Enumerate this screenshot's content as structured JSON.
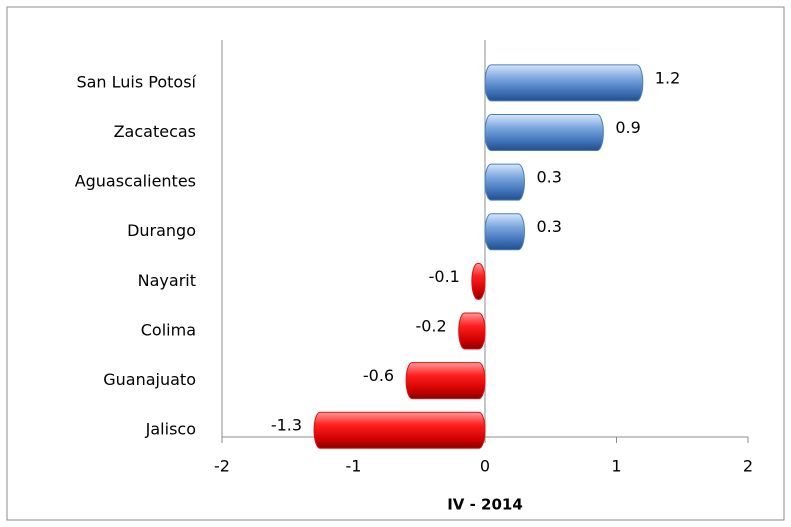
{
  "chart_data": {
    "type": "hbar",
    "x_label": "IV - 2014",
    "categories": [
      "San Luis Potosí",
      "Zacatecas",
      "Aguascalientes",
      "Durango",
      "Nayarit",
      "Colima",
      "Guanajuato",
      "Jalisco"
    ],
    "values": [
      1.2,
      0.9,
      0.3,
      0.3,
      -0.1,
      -0.2,
      -0.6,
      -1.3
    ],
    "positive_color": "#4a7ebb",
    "negative_color": "#e01010",
    "xlim": [
      -2,
      2
    ],
    "xticks": [
      -2,
      -1,
      0,
      1,
      2
    ]
  }
}
